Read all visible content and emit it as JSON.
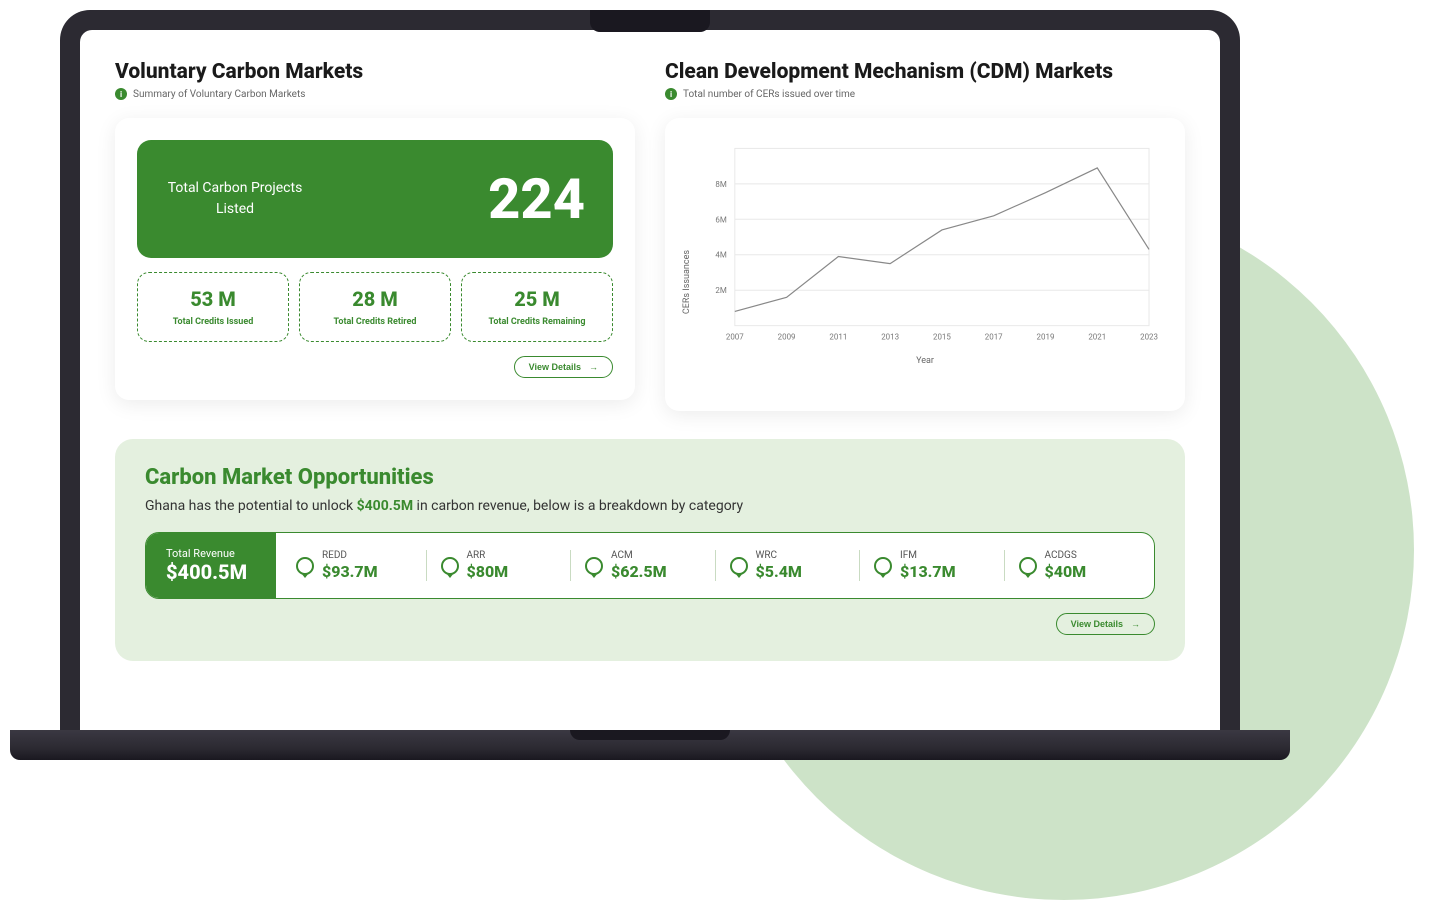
{
  "colors": {
    "primary_green": "#3a8a2f",
    "light_green_bg": "#e4f0df",
    "circle_bg": "#cde3c8",
    "laptop_frame": "#2c2a32",
    "text_dark": "#1a1a1a",
    "text_muted": "#666666",
    "card_bg": "#ffffff",
    "grid": "#e8e8e8"
  },
  "vcm": {
    "title": "Voluntary Carbon Markets",
    "subtitle": "Summary of Voluntary Carbon Markets",
    "hero": {
      "label": "Total Carbon Projects Listed",
      "value": "224"
    },
    "stats": [
      {
        "value": "53 M",
        "label": "Total Credits Issued"
      },
      {
        "value": "28 M",
        "label": "Total Credits Retired"
      },
      {
        "value": "25 M",
        "label": "Total Credits Remaining"
      }
    ],
    "view_details_label": "View Details"
  },
  "cdm": {
    "title": "Clean Development Mechanism (CDM) Markets",
    "subtitle": "Total number of CERs issued over time",
    "chart": {
      "type": "line",
      "ylabel": "CERs Issuances",
      "xlabel": "Year",
      "x_ticks": [
        "2007",
        "2009",
        "2011",
        "2013",
        "2015",
        "2017",
        "2019",
        "2021",
        "2023"
      ],
      "y_ticks": [
        "2M",
        "4M",
        "6M",
        "8M"
      ],
      "y_tick_values": [
        2,
        4,
        6,
        8
      ],
      "ylim": [
        0,
        10
      ],
      "values": [
        0.8,
        1.6,
        3.9,
        3.5,
        5.4,
        6.2,
        7.5,
        8.9,
        4.3
      ],
      "line_color": "#888888",
      "grid_color": "#e8e8e8",
      "line_width": 1.2,
      "tick_fontsize": 8,
      "label_fontsize": 9
    }
  },
  "opp": {
    "title": "Carbon Market Opportunities",
    "subtitle_pre": "Ghana has the potential to unlock ",
    "subtitle_hl": "$400.5M",
    "subtitle_post": " in carbon revenue, below is a breakdown by category",
    "total": {
      "label": "Total Revenue",
      "value": "$400.5M"
    },
    "items": [
      {
        "label": "REDD",
        "value": "$93.7M"
      },
      {
        "label": "ARR",
        "value": "$80M"
      },
      {
        "label": "ACM",
        "value": "$62.5M"
      },
      {
        "label": "WRC",
        "value": "$5.4M"
      },
      {
        "label": "IFM",
        "value": "$13.7M"
      },
      {
        "label": "ACDGS",
        "value": "$40M"
      }
    ],
    "view_details_label": "View Details"
  }
}
